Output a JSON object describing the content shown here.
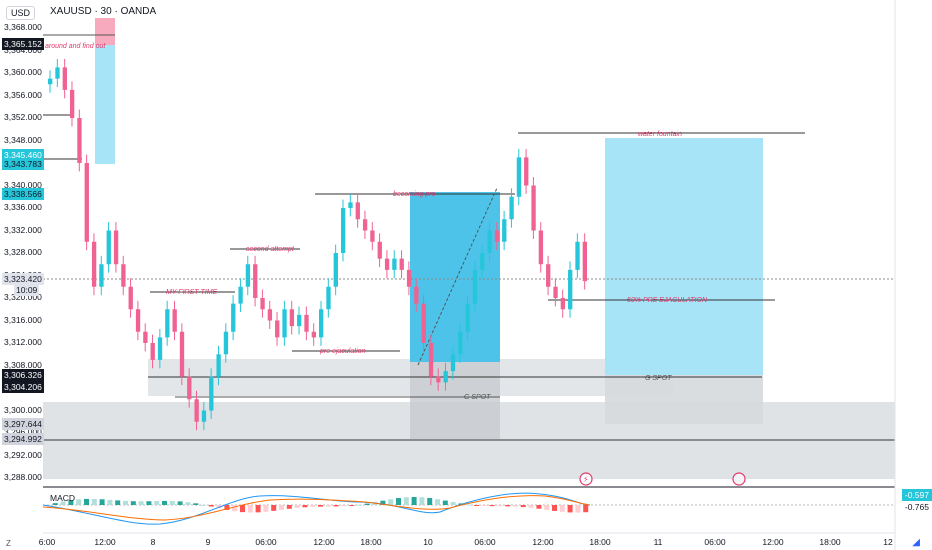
{
  "header": {
    "currency": "USD",
    "title": "XAUUSD · 30 · OANDA"
  },
  "price_axis": {
    "labels": [
      "3,368.000",
      "3,364.000",
      "3,360.000",
      "3,356.000",
      "3,352.000",
      "3,348.000",
      "3,344.000",
      "3,340.000",
      "3,336.000",
      "3,332.000",
      "3,328.000",
      "3,324.000",
      "3,320.000",
      "3,316.000",
      "3,312.000",
      "3,308.000",
      "3,304.000",
      "3,300.000",
      "3,296.000",
      "3,292.000",
      "3,288.000"
    ],
    "tags": [
      {
        "text": "3,365.152",
        "bg": "#131722",
        "fg": "#ffffff",
        "price": 3365.152
      },
      {
        "text": "3,345.460",
        "bg": "#26c6da",
        "fg": "#ffffff",
        "price": 3345.46
      },
      {
        "text": "3,343.783",
        "bg": "#26c6da",
        "fg": "#131722",
        "price": 3343.783
      },
      {
        "text": "3,338.566",
        "bg": "#26c6da",
        "fg": "#131722",
        "price": 3338.566
      },
      {
        "text": "3,323.420",
        "bg": "#e0e3eb",
        "fg": "#131722",
        "price": 3323.42
      },
      {
        "text": "3,306.326",
        "bg": "#131722",
        "fg": "#ffffff",
        "price": 3306.326
      },
      {
        "text": "3,304.206",
        "bg": "#131722",
        "fg": "#ffffff",
        "price": 3304.206
      },
      {
        "text": "3,297.644",
        "bg": "#d1d4dc",
        "fg": "#131722",
        "price": 3297.644
      },
      {
        "text": "3,294.992",
        "bg": "#d1d4dc",
        "fg": "#131722",
        "price": 3294.992
      }
    ],
    "countdown": "10:09"
  },
  "time_axis": {
    "labels": [
      "6:00",
      "12:00",
      "8",
      "9",
      "06:00",
      "12:00",
      "18:00",
      "10",
      "06:00",
      "12:00",
      "18:00",
      "11",
      "06:00",
      "12:00",
      "18:00",
      "12"
    ]
  },
  "annotations": {
    "a1": "around and find out",
    "a2": "water fountain",
    "a3": "becoming pro",
    "a4": "second attempt",
    "a5": "MY FIRST TIME",
    "a6": "pre ejaculation",
    "a7": "50% PRE EJACULATION",
    "a8": "G SPOT",
    "a9": "G SPOT"
  },
  "macd": {
    "label": "MACD",
    "value1": "-0.597",
    "value2": "-0.765"
  },
  "chart_data": {
    "type": "candlestick",
    "title": "XAUUSD · 30 · OANDA",
    "ylim": [
      3287,
      3370
    ],
    "last_price": 3323.42,
    "close_series": [
      3359,
      3361,
      3357,
      3352,
      3344,
      3330,
      3322,
      3326,
      3332,
      3326,
      3322,
      3318,
      3314,
      3312,
      3309,
      3313,
      3318,
      3314,
      3306,
      3302,
      3298,
      3300,
      3306,
      3310,
      3314,
      3319,
      3322,
      3326,
      3320,
      3318,
      3316,
      3313,
      3318,
      3315,
      3317,
      3314,
      3313,
      3318,
      3322,
      3328,
      3336,
      3337,
      3334,
      3332,
      3330,
      3327,
      3325,
      3327,
      3325,
      3322,
      3319,
      3312,
      3306,
      3305,
      3307,
      3310,
      3314,
      3319,
      3325,
      3328,
      3332,
      3330,
      3334,
      3338,
      3345,
      3340,
      3332,
      3326,
      3322,
      3320,
      3318,
      3325,
      3330,
      3323
    ]
  }
}
